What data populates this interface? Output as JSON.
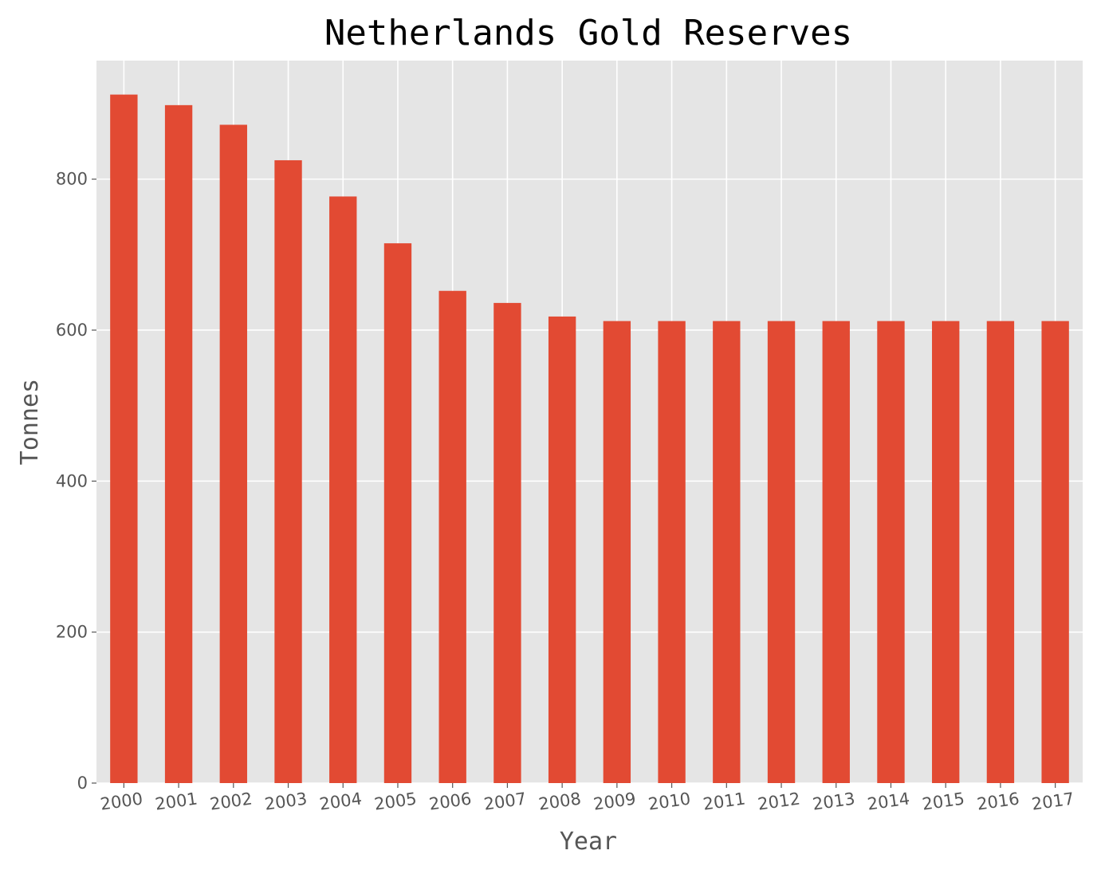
{
  "chart_data": {
    "type": "bar",
    "title": "Netherlands Gold Reserves",
    "xlabel": "Year",
    "ylabel": "Tonnes",
    "categories": [
      "2000",
      "2001",
      "2002",
      "2003",
      "2004",
      "2005",
      "2006",
      "2007",
      "2008",
      "2009",
      "2010",
      "2011",
      "2012",
      "2013",
      "2014",
      "2015",
      "2016",
      "2017"
    ],
    "values": [
      912,
      898,
      872,
      825,
      777,
      715,
      652,
      636,
      618,
      612,
      612,
      612,
      612,
      612,
      612,
      612,
      612,
      612
    ],
    "yticks": [
      0,
      200,
      400,
      600,
      800
    ],
    "ylim": [
      0,
      957
    ],
    "grid": true,
    "legend": "none",
    "colors": {
      "bar": "#E24A33",
      "plot_background": "#E5E5E5",
      "grid": "#FFFFFF"
    }
  }
}
